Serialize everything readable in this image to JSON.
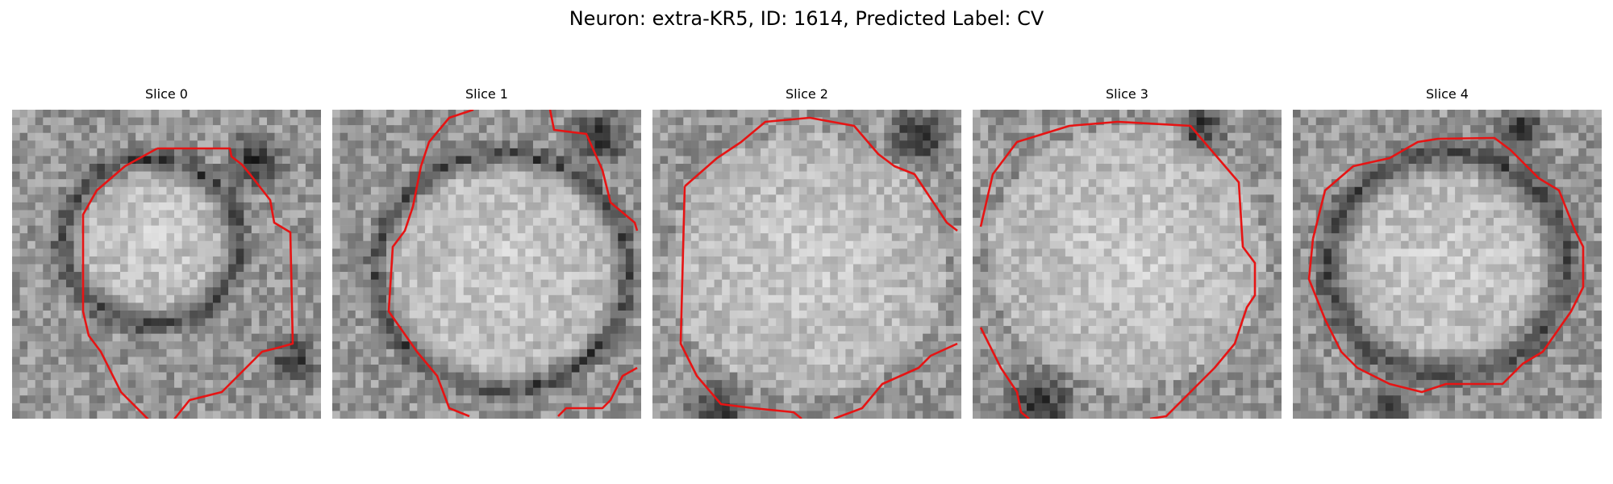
{
  "title": "Neuron: extra-KR5, ID: 1614, Predicted Label: CV",
  "slices": [
    {
      "label": "Slice 0"
    },
    {
      "label": "Slice 1"
    },
    {
      "label": "Slice 2"
    },
    {
      "label": "Slice 3"
    },
    {
      "label": "Slice 4"
    }
  ],
  "contour_color": "#e61414"
}
